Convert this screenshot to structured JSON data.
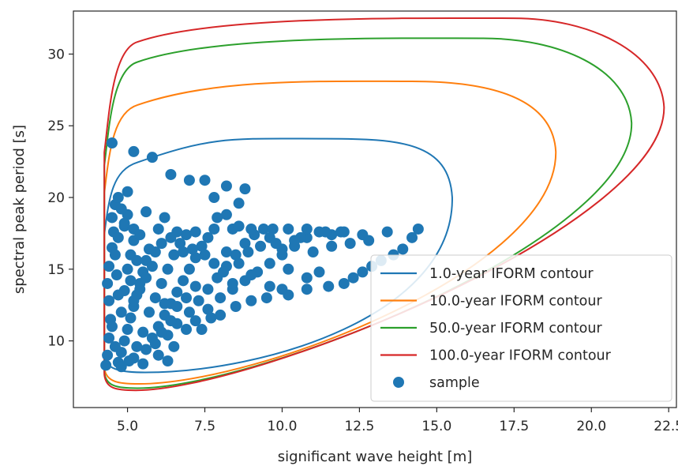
{
  "chart_data": {
    "type": "scatter",
    "xlabel": "significant wave height [m]",
    "ylabel": "spectral peak period [s]",
    "xlim": [
      3.25,
      22.75
    ],
    "ylim": [
      5.35,
      33.0
    ],
    "xticks": [
      {
        "value": 5.0,
        "label": "5.0"
      },
      {
        "value": 7.5,
        "label": "7.5"
      },
      {
        "value": 10.0,
        "label": "10.0"
      },
      {
        "value": 12.5,
        "label": "12.5"
      },
      {
        "value": 15.0,
        "label": "15.0"
      },
      {
        "value": 17.5,
        "label": "17.5"
      },
      {
        "value": 20.0,
        "label": "20.0"
      },
      {
        "value": 22.5,
        "label": "22.5"
      }
    ],
    "yticks": [
      {
        "value": 10,
        "label": "10"
      },
      {
        "value": 15,
        "label": "15"
      },
      {
        "value": 20,
        "label": "20"
      },
      {
        "value": 25,
        "label": "25"
      },
      {
        "value": 30,
        "label": "30"
      }
    ],
    "grid": false,
    "legend_position": "lower-right",
    "contours": [
      {
        "name": "1.0-year IFORM contour",
        "color": "#1f77b4",
        "xmin": 4.25,
        "xmax": 15.5,
        "ymin": 7.8,
        "ymax": 24.1,
        "x_at_ymax": 11.4,
        "x_at_ymin": 4.8,
        "y_at_xmax": 20.0,
        "y_at_xmin": 12.0
      },
      {
        "name": "10.0-year IFORM contour",
        "color": "#ff7f0e",
        "xmin": 4.25,
        "xmax": 18.85,
        "ymin": 7.0,
        "ymax": 28.1,
        "x_at_ymax": 14.2,
        "x_at_ymin": 4.6,
        "y_at_xmax": 23.2,
        "y_at_xmin": 14.0
      },
      {
        "name": "50.0-year IFORM contour",
        "color": "#2ca02c",
        "xmin": 4.25,
        "xmax": 21.3,
        "ymin": 6.7,
        "ymax": 31.1,
        "x_at_ymax": 16.5,
        "x_at_ymin": 4.55,
        "y_at_xmax": 25.2,
        "y_at_xmin": 15.0
      },
      {
        "name": "100.0-year IFORM contour",
        "color": "#d62728",
        "xmin": 4.25,
        "xmax": 22.35,
        "ymin": 6.55,
        "ymax": 32.5,
        "x_at_ymax": 17.5,
        "x_at_ymin": 4.5,
        "y_at_xmax": 26.3,
        "y_at_xmin": 15.5
      }
    ],
    "sample": {
      "name": "sample",
      "color": "#1f77b4",
      "points": [
        [
          4.3,
          8.3
        ],
        [
          4.35,
          9.0
        ],
        [
          4.4,
          10.2
        ],
        [
          4.45,
          11.5
        ],
        [
          4.4,
          12.8
        ],
        [
          4.35,
          14.0
        ],
        [
          4.4,
          15.2
        ],
        [
          4.5,
          16.5
        ],
        [
          4.55,
          17.6
        ],
        [
          4.5,
          18.6
        ],
        [
          4.6,
          19.5
        ],
        [
          4.7,
          8.5
        ],
        [
          4.8,
          9.2
        ],
        [
          4.9,
          10.0
        ],
        [
          5.0,
          10.8
        ],
        [
          5.1,
          11.6
        ],
        [
          5.2,
          12.4
        ],
        [
          5.3,
          13.2
        ],
        [
          5.4,
          14.0
        ],
        [
          5.5,
          14.8
        ],
        [
          5.6,
          15.6
        ],
        [
          5.7,
          16.4
        ],
        [
          4.8,
          12.0
        ],
        [
          4.9,
          13.5
        ],
        [
          5.0,
          15.0
        ],
        [
          5.1,
          16.0
        ],
        [
          5.2,
          17.0
        ],
        [
          4.7,
          17.2
        ],
        [
          4.9,
          18.0
        ],
        [
          5.0,
          18.8
        ],
        [
          4.8,
          19.2
        ],
        [
          5.2,
          17.8
        ],
        [
          5.8,
          10.2
        ],
        [
          6.0,
          11.0
        ],
        [
          6.2,
          11.8
        ],
        [
          6.4,
          12.6
        ],
        [
          6.6,
          13.4
        ],
        [
          6.8,
          14.2
        ],
        [
          7.0,
          15.0
        ],
        [
          7.2,
          15.8
        ],
        [
          7.4,
          16.6
        ],
        [
          7.6,
          17.2
        ],
        [
          5.9,
          13.0
        ],
        [
          6.1,
          14.0
        ],
        [
          6.3,
          15.0
        ],
        [
          6.5,
          16.0
        ],
        [
          6.7,
          16.8
        ],
        [
          6.9,
          17.4
        ],
        [
          5.6,
          9.4
        ],
        [
          5.9,
          9.8
        ],
        [
          6.3,
          10.4
        ],
        [
          6.6,
          11.2
        ],
        [
          7.0,
          12.0
        ],
        [
          7.3,
          12.8
        ],
        [
          7.6,
          13.6
        ],
        [
          7.9,
          14.4
        ],
        [
          8.2,
          15.2
        ],
        [
          8.5,
          16.0
        ],
        [
          8.8,
          16.8
        ],
        [
          9.1,
          17.4
        ],
        [
          9.4,
          17.8
        ],
        [
          9.7,
          17.8
        ],
        [
          8.0,
          13.0
        ],
        [
          8.4,
          13.6
        ],
        [
          8.8,
          14.2
        ],
        [
          9.2,
          14.8
        ],
        [
          9.6,
          15.4
        ],
        [
          10.0,
          16.0
        ],
        [
          10.4,
          16.6
        ],
        [
          10.8,
          17.2
        ],
        [
          11.2,
          17.6
        ],
        [
          11.6,
          17.4
        ],
        [
          7.2,
          17.6
        ],
        [
          7.8,
          17.8
        ],
        [
          8.4,
          17.8
        ],
        [
          9.0,
          17.8
        ],
        [
          9.6,
          17.2
        ],
        [
          10.2,
          17.8
        ],
        [
          10.8,
          17.8
        ],
        [
          11.4,
          17.6
        ],
        [
          12.0,
          17.6
        ],
        [
          4.5,
          23.8
        ],
        [
          5.2,
          23.2
        ],
        [
          5.8,
          22.8
        ],
        [
          6.4,
          21.6
        ],
        [
          7.0,
          21.2
        ],
        [
          7.5,
          21.2
        ],
        [
          8.2,
          20.8
        ],
        [
          8.8,
          20.6
        ],
        [
          7.8,
          20.0
        ],
        [
          8.6,
          19.6
        ],
        [
          8.2,
          18.8
        ],
        [
          8.6,
          18.0
        ],
        [
          7.9,
          18.6
        ],
        [
          4.9,
          18.2
        ],
        [
          5.4,
          17.4
        ],
        [
          6.0,
          17.8
        ],
        [
          6.6,
          17.6
        ],
        [
          10.2,
          15.0
        ],
        [
          10.8,
          14.4
        ],
        [
          11.2,
          14.8
        ],
        [
          11.5,
          13.8
        ],
        [
          12.0,
          14.0
        ],
        [
          12.3,
          14.4
        ],
        [
          12.6,
          14.8
        ],
        [
          12.9,
          15.2
        ],
        [
          13.2,
          15.6
        ],
        [
          13.6,
          16.0
        ],
        [
          13.9,
          16.4
        ],
        [
          14.2,
          17.2
        ],
        [
          14.4,
          17.8
        ],
        [
          13.4,
          17.6
        ],
        [
          12.6,
          17.4
        ],
        [
          11.9,
          17.6
        ],
        [
          10.6,
          17.2
        ],
        [
          10.0,
          16.4
        ],
        [
          10.8,
          13.6
        ],
        [
          10.2,
          13.2
        ],
        [
          9.6,
          13.8
        ],
        [
          9.0,
          14.6
        ],
        [
          8.6,
          15.4
        ],
        [
          8.2,
          16.2
        ],
        [
          6.0,
          9.0
        ],
        [
          6.3,
          8.6
        ],
        [
          5.5,
          8.4
        ],
        [
          5.2,
          8.8
        ],
        [
          6.5,
          9.6
        ],
        [
          6.9,
          10.8
        ],
        [
          7.2,
          11.4
        ],
        [
          7.6,
          12.2
        ],
        [
          8.0,
          11.8
        ],
        [
          8.5,
          12.4
        ],
        [
          9.0,
          12.8
        ],
        [
          9.5,
          13.0
        ],
        [
          10.0,
          13.6
        ],
        [
          5.6,
          19.0
        ],
        [
          6.2,
          18.6
        ],
        [
          4.7,
          20.0
        ],
        [
          5.0,
          20.4
        ],
        [
          4.6,
          16.0
        ],
        [
          4.65,
          14.6
        ],
        [
          4.7,
          13.2
        ],
        [
          4.5,
          11.0
        ],
        [
          4.6,
          9.6
        ],
        [
          4.8,
          8.2
        ],
        [
          5.05,
          8.6
        ],
        [
          5.3,
          9.6
        ],
        [
          5.5,
          10.6
        ],
        [
          5.7,
          12.0
        ],
        [
          5.9,
          16.2
        ],
        [
          6.1,
          16.8
        ],
        [
          6.4,
          17.2
        ],
        [
          6.8,
          16.2
        ],
        [
          7.1,
          16.4
        ],
        [
          7.5,
          16.0
        ],
        [
          7.8,
          15.4
        ],
        [
          8.1,
          14.8
        ],
        [
          8.4,
          14.0
        ],
        [
          7.2,
          13.8
        ],
        [
          6.9,
          13.0
        ],
        [
          6.6,
          12.4
        ],
        [
          6.2,
          12.6
        ],
        [
          6.1,
          10.6
        ],
        [
          6.4,
          11.4
        ],
        [
          7.4,
          10.8
        ],
        [
          7.7,
          11.6
        ],
        [
          5.4,
          13.6
        ],
        [
          5.6,
          14.4
        ],
        [
          5.8,
          15.2
        ],
        [
          5.3,
          15.6
        ],
        [
          5.1,
          14.2
        ],
        [
          5.2,
          12.8
        ],
        [
          8.9,
          16.2
        ],
        [
          9.3,
          16.6
        ],
        [
          9.8,
          16.8
        ],
        [
          10.4,
          17.0
        ],
        [
          11.0,
          16.2
        ],
        [
          11.6,
          16.6
        ],
        [
          12.2,
          16.8
        ],
        [
          12.8,
          17.0
        ]
      ]
    }
  }
}
